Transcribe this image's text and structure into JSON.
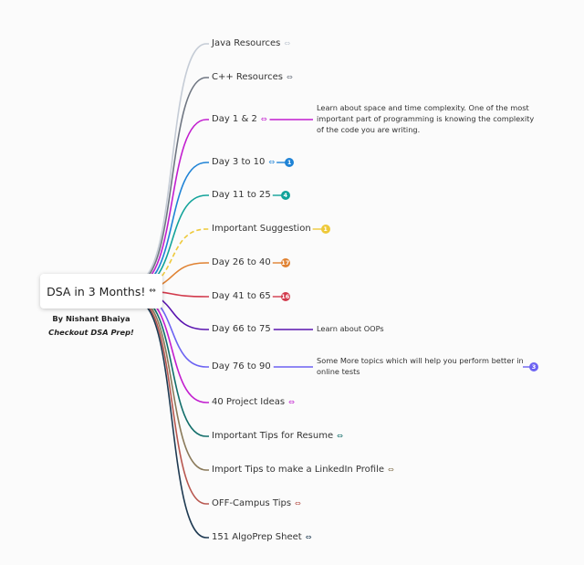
{
  "root": {
    "title": "DSA in 3 Months!",
    "icon": "link-icon"
  },
  "byline": {
    "author": "By Nishant Bhaiya",
    "promo": "Checkout DSA Prep!"
  },
  "branches": [
    {
      "label": "Java Resources",
      "color": "#c5ccd6",
      "icon": "link-icon"
    },
    {
      "label": "C++ Resources",
      "color": "#6f7682",
      "icon": "link-icon"
    },
    {
      "label": "Day 1 & 2",
      "color": "#c21ecf",
      "icon": "link-icon"
    },
    {
      "label": "Day 3 to 10",
      "color": "#1f83d6",
      "icon": "link-icon"
    },
    {
      "label": "Day 11 to 25",
      "color": "#12a39a",
      "icon": ""
    },
    {
      "label": "Important Suggestion",
      "color": "#eec93a",
      "icon": ""
    },
    {
      "label": "Day 26 to 40",
      "color": "#e08232",
      "icon": ""
    },
    {
      "label": "Day 41 to 65",
      "color": "#d23a4c",
      "icon": ""
    },
    {
      "label": "Day 66 to 75",
      "color": "#5a14b0",
      "icon": ""
    },
    {
      "label": "Day 76 to 90",
      "color": "#6c63f2",
      "icon": ""
    },
    {
      "label": "40 Project Ideas",
      "color": "#c21ecf",
      "icon": "link-icon"
    },
    {
      "label": "Important Tips for Resume",
      "color": "#126e6a",
      "icon": "link-icon"
    },
    {
      "label": "Import Tips to make a LinkedIn Profile",
      "color": "#8a7a5a",
      "icon": "link-icon"
    },
    {
      "label": "OFF-Campus Tips",
      "color": "#b8574f",
      "icon": "link-icon"
    },
    {
      "label": "151 AlgoPrep Sheet",
      "color": "#1e3a52",
      "icon": "link-icon"
    }
  ],
  "notes": [
    {
      "branch": 2,
      "lines": [
        "Learn about space and time complexity. One of the most",
        "important part of programming is knowing the complexity",
        "of the code you are writing."
      ]
    },
    {
      "branch": 8,
      "lines": [
        "Learn about OOPs"
      ]
    },
    {
      "branch": 9,
      "lines": [
        "Some More topics which will help you perform better in",
        "online tests"
      ]
    }
  ],
  "badges": [
    {
      "branch": 3,
      "count": "1",
      "color": "#1f83d6"
    },
    {
      "branch": 4,
      "count": "4",
      "color": "#12a39a"
    },
    {
      "branch": 5,
      "count": "1",
      "color": "#eec93a"
    },
    {
      "branch": 6,
      "count": "17",
      "color": "#e08232"
    },
    {
      "branch": 7,
      "count": "16",
      "color": "#d23a4c"
    },
    {
      "branch": 9,
      "count": "3",
      "color": "#6c63f2"
    }
  ]
}
